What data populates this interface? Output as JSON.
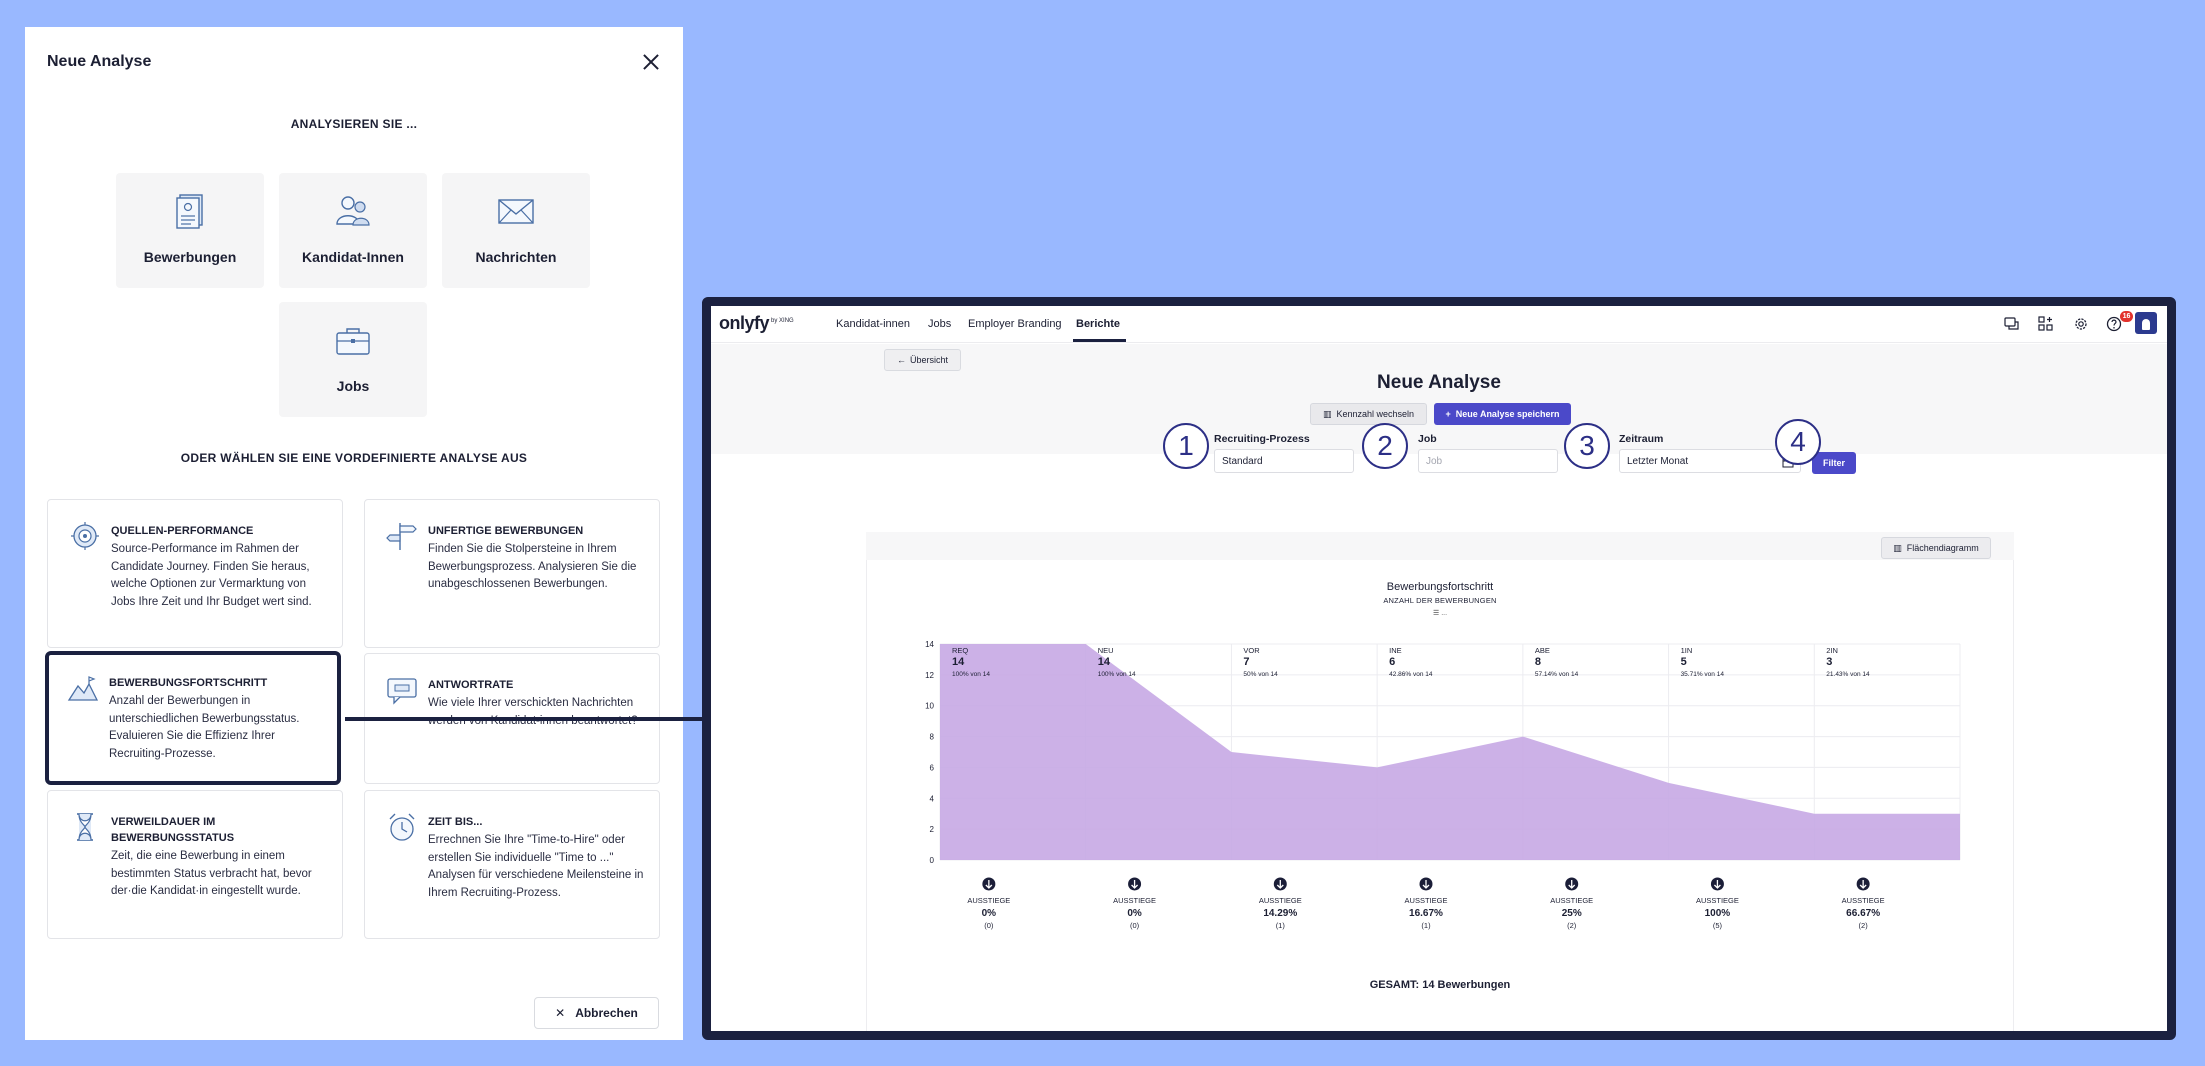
{
  "modal": {
    "title": "Neue Analyse",
    "analyze_label": "ANALYSIEREN SIE ...",
    "tiles": [
      {
        "label": "Bewerbungen",
        "icon": "document-icon"
      },
      {
        "label": "Kandidat-Innen",
        "icon": "people-icon"
      },
      {
        "label": "Nachrichten",
        "icon": "envelope-icon"
      },
      {
        "label": "Jobs",
        "icon": "briefcase-icon"
      }
    ],
    "predefined_label": "ODER WÄHLEN SIE EINE VORDEFINIERTE ANALYSE AUS",
    "cards": [
      {
        "title": "QUELLEN-PERFORMANCE",
        "desc": "Source-Performance im Rahmen der Candidate Journey. Finden Sie heraus, welche Optionen zur Vermarktung von Jobs Ihre Zeit und Ihr Budget wert sind.",
        "icon": "target-badge-icon"
      },
      {
        "title": "UNFERTIGE BEWERBUNGEN",
        "desc": "Finden Sie die Stolpersteine in Ihrem Bewerbungsprozess. Analysieren Sie die unabgeschlossenen Bewerbungen.",
        "icon": "signpost-icon"
      },
      {
        "title": "BEWERBUNGSFORTSCHRITT",
        "desc": "Anzahl der Bewerbungen in unterschiedlichen Bewerbungsstatus. Evaluieren Sie die Effizienz Ihrer Recruiting-Prozesse.",
        "icon": "mountain-chart-icon"
      },
      {
        "title": "ANTWORTRATE",
        "desc": "Wie viele Ihrer verschickten Nachrichten werden von Kandidat-innen beantwortet?",
        "icon": "chat-bubble-icon"
      },
      {
        "title": "VERWEILDAUER IM BEWERBUNGSSTATUS",
        "desc": "Zeit, die eine Bewerbung in einem bestimmten Status verbracht hat, bevor der·die Kandidat·in eingestellt wurde.",
        "icon": "hourglass-icon"
      },
      {
        "title": "ZEIT BIS...",
        "desc": "Errechnen Sie Ihre \"Time-to-Hire\" oder erstellen Sie individuelle \"Time to ...\" Analysen für verschiedene Meilensteine in Ihrem Recruiting-Prozess.",
        "icon": "alarm-clock-icon"
      }
    ],
    "cancel_label": "Abbrechen"
  },
  "app": {
    "logo": "onlyfy",
    "logo_suffix": "by XING",
    "nav": [
      "Kandidat-innen",
      "Jobs",
      "Employer Branding",
      "Berichte"
    ],
    "active_nav": "Berichte",
    "notification_count": "16",
    "back_label": "Übersicht",
    "page_title": "Neue Analyse",
    "switch_metric_label": "Kennzahl wechseln",
    "save_label": "Neue Analyse speichern",
    "filters": {
      "process_label": "Recruiting-Prozess",
      "process_value": "Standard",
      "job_label": "Job",
      "job_placeholder": "Job",
      "period_label": "Zeitraum",
      "period_value": "Letzter Monat",
      "filter_button": "Filter"
    },
    "steps": [
      "1",
      "2",
      "3",
      "4"
    ],
    "chart_type_label": "Flächendiagramm",
    "total_label": "GESAMT: 14 Bewerbungen",
    "chart_menu": "☰ ..."
  },
  "chart_data": {
    "type": "area",
    "title": "Bewerbungsfortschritt",
    "subtitle": "ANZAHL DER BEWERBUNGEN",
    "ylim": [
      0,
      14
    ],
    "yticks": [
      "0",
      "2",
      "4",
      "6",
      "8",
      "10",
      "12",
      "14"
    ],
    "color": "#c7a8e4",
    "stages": [
      {
        "label": "REQ",
        "value": 14,
        "pct": "100% von 14",
        "dropout_label": "AUSSTIEGE",
        "dropout_pct": "0%",
        "dropout_count": "(0)"
      },
      {
        "label": "NEU",
        "value": 14,
        "pct": "100% von 14",
        "dropout_label": "AUSSTIEGE",
        "dropout_pct": "0%",
        "dropout_count": "(0)"
      },
      {
        "label": "VOR",
        "value": 7,
        "pct": "50% von 14",
        "dropout_label": "AUSSTIEGE",
        "dropout_pct": "14.29%",
        "dropout_count": "(1)"
      },
      {
        "label": "INE",
        "value": 6,
        "pct": "42.86% von 14",
        "dropout_label": "AUSSTIEGE",
        "dropout_pct": "16.67%",
        "dropout_count": "(1)"
      },
      {
        "label": "ABE",
        "value": 8,
        "pct": "57.14% von 14",
        "dropout_label": "AUSSTIEGE",
        "dropout_pct": "25%",
        "dropout_count": "(2)"
      },
      {
        "label": "1IN",
        "value": 5,
        "pct": "35.71% von 14",
        "dropout_label": "AUSSTIEGE",
        "dropout_pct": "100%",
        "dropout_count": "(5)"
      },
      {
        "label": "2IN",
        "value": 3,
        "pct": "21.43% von 14",
        "dropout_label": "AUSSTIEGE",
        "dropout_pct": "66.67%",
        "dropout_count": "(2)"
      }
    ]
  }
}
